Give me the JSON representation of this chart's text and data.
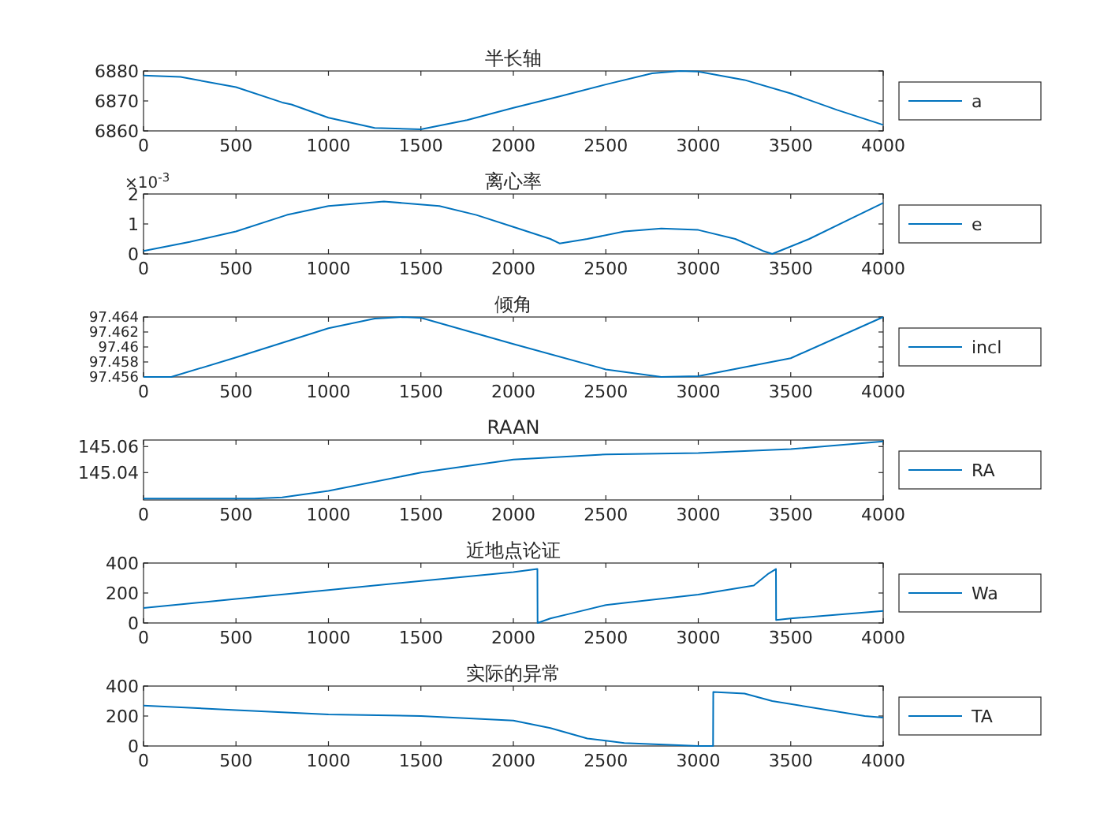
{
  "chart_data": [
    {
      "type": "line",
      "title": "半长轴",
      "xlim": [
        0,
        4000
      ],
      "xticks": [
        0,
        500,
        1000,
        1500,
        2000,
        2500,
        3000,
        3500,
        4000
      ],
      "ylim": [
        6860,
        6880
      ],
      "yticks": [
        6860,
        6870,
        6880
      ],
      "legend": "right",
      "x": [
        0,
        200,
        500,
        750,
        800,
        1000,
        1250,
        1500,
        1750,
        2000,
        2250,
        2500,
        2750,
        2900,
        3000,
        3250,
        3500,
        3750,
        4000
      ],
      "series": [
        {
          "name": "a",
          "color": "#0072bd",
          "values": [
            6878.5,
            6878,
            6874.6,
            6869.5,
            6868.8,
            6864.4,
            6861,
            6860.5,
            6863.6,
            6867.7,
            6871.5,
            6875.5,
            6879.2,
            6880,
            6879.8,
            6877,
            6872.5,
            6867,
            6862
          ]
        }
      ]
    },
    {
      "type": "line",
      "title": "离心率",
      "annotations": [
        "×10$^{-3}$"
      ],
      "xlim": [
        0,
        4000
      ],
      "xticks": [
        0,
        500,
        1000,
        1500,
        2000,
        2500,
        3000,
        3500,
        4000
      ],
      "ylim": [
        0,
        2
      ],
      "yticks": [
        0,
        1,
        2
      ],
      "legend": "right",
      "x": [
        0,
        250,
        500,
        775,
        1000,
        1300,
        1600,
        1800,
        2000,
        2200,
        2250,
        2400,
        2600,
        2800,
        3000,
        3200,
        3350,
        3400,
        3600,
        3800,
        4000
      ],
      "series": [
        {
          "name": "e",
          "color": "#0072bd",
          "values": [
            0.1,
            0.4,
            0.75,
            1.3,
            1.6,
            1.75,
            1.6,
            1.3,
            0.9,
            0.5,
            0.35,
            0.5,
            0.75,
            0.85,
            0.8,
            0.5,
            0.1,
            0.0,
            0.5,
            1.1,
            1.7
          ]
        }
      ]
    },
    {
      "type": "line",
      "title": "倾角",
      "xlim": [
        0,
        4000
      ],
      "xticks": [
        0,
        500,
        1000,
        1500,
        2000,
        2500,
        3000,
        3500,
        4000
      ],
      "ylim": [
        97.456,
        97.464
      ],
      "yticks": [
        97.456,
        97.458,
        97.46,
        97.462,
        97.464
      ],
      "legend": "right",
      "x": [
        0,
        150,
        500,
        1000,
        1250,
        1400,
        1500,
        2000,
        2500,
        2800,
        3000,
        3500,
        4000
      ],
      "series": [
        {
          "name": "incl",
          "color": "#0072bd",
          "values": [
            97.456,
            97.456,
            97.4586,
            97.4625,
            97.4638,
            97.464,
            97.4639,
            97.4604,
            97.457,
            97.456,
            97.4561,
            97.4585,
            97.464
          ]
        }
      ]
    },
    {
      "type": "line",
      "title": "RAAN",
      "xlim": [
        0,
        4000
      ],
      "xticks": [
        0,
        500,
        1000,
        1500,
        2000,
        2500,
        3000,
        3500,
        4000
      ],
      "ylim": [
        145.019,
        145.065
      ],
      "yticks": [
        145.04,
        145.06
      ],
      "legend": "right",
      "x": [
        0,
        600,
        750,
        1000,
        1500,
        2000,
        2500,
        3000,
        3500,
        4000
      ],
      "series": [
        {
          "name": "RA",
          "color": "#0072bd",
          "values": [
            145.02,
            145.02,
            145.021,
            145.026,
            145.04,
            145.05,
            145.054,
            145.055,
            145.058,
            145.064
          ]
        }
      ]
    },
    {
      "type": "line",
      "title": "近地点论证",
      "xlim": [
        0,
        4000
      ],
      "xticks": [
        0,
        500,
        1000,
        1500,
        2000,
        2500,
        3000,
        3500,
        4000
      ],
      "ylim": [
        0,
        400
      ],
      "yticks": [
        0,
        200,
        400
      ],
      "legend": "right",
      "x": [
        0,
        500,
        1000,
        1500,
        2000,
        2130,
        2131,
        2200,
        2300,
        2500,
        3000,
        3300,
        3380,
        3420,
        3421,
        3500,
        4000
      ],
      "series": [
        {
          "name": "Wa",
          "color": "#0072bd",
          "values": [
            100,
            160,
            220,
            280,
            340,
            360,
            0,
            30,
            60,
            120,
            190,
            250,
            330,
            360,
            20,
            30,
            80
          ]
        }
      ]
    },
    {
      "type": "line",
      "title": "实际的异常",
      "xlim": [
        0,
        4000
      ],
      "xticks": [
        0,
        500,
        1000,
        1500,
        2000,
        2500,
        3000,
        3500,
        4000
      ],
      "ylim": [
        0,
        400
      ],
      "yticks": [
        0,
        200,
        400
      ],
      "legend": "right",
      "x": [
        0,
        500,
        1000,
        1500,
        2000,
        2200,
        2400,
        2600,
        3000,
        3080,
        3081,
        3250,
        3400,
        3900,
        4000
      ],
      "series": [
        {
          "name": "TA",
          "color": "#0072bd",
          "values": [
            270,
            240,
            210,
            200,
            170,
            120,
            50,
            20,
            0,
            0,
            360,
            350,
            300,
            200,
            190
          ]
        }
      ]
    }
  ]
}
